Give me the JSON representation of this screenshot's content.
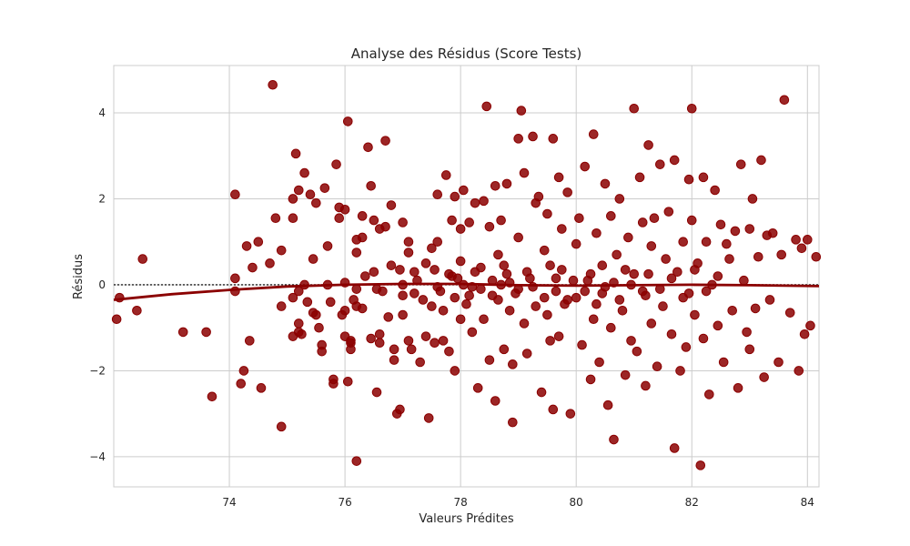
{
  "colors": {
    "point": "#8B0000",
    "trend": "#8B0000",
    "grid": "#cccccc"
  },
  "chart_data": {
    "type": "scatter",
    "title": "Analyse des Résidus (Score Tests)",
    "xlabel": "Valeurs Prédites",
    "ylabel": "Résidus",
    "xlim": [
      72.0,
      84.2
    ],
    "ylim": [
      -4.7,
      5.1
    ],
    "xticks": [
      74,
      76,
      78,
      80,
      82,
      84
    ],
    "yticks": [
      -4,
      -2,
      0,
      2,
      4
    ],
    "ytick_labels": [
      "−4",
      "−2",
      "0",
      "2",
      "4"
    ],
    "grid": true,
    "reference_line": {
      "y": 0,
      "style": "dotted"
    },
    "trend": {
      "x": [
        72.0,
        73.0,
        74.0,
        75.0,
        76.0,
        77.0,
        78.0,
        79.0,
        80.0,
        81.0,
        82.0,
        83.0,
        84.2
      ],
      "y": [
        -0.35,
        -0.22,
        -0.12,
        -0.04,
        0.0,
        0.02,
        0.02,
        -0.01,
        -0.02,
        -0.01,
        0.0,
        -0.01,
        -0.03
      ]
    },
    "points": [
      [
        72.05,
        -0.8
      ],
      [
        72.1,
        -0.3
      ],
      [
        72.4,
        -0.6
      ],
      [
        72.5,
        0.6
      ],
      [
        73.2,
        -1.1
      ],
      [
        73.6,
        -1.1
      ],
      [
        73.7,
        -2.6
      ],
      [
        74.1,
        2.1
      ],
      [
        74.1,
        0.15
      ],
      [
        74.1,
        -0.15
      ],
      [
        74.2,
        -2.3
      ],
      [
        74.25,
        -2.0
      ],
      [
        74.3,
        0.9
      ],
      [
        74.35,
        -1.3
      ],
      [
        74.4,
        0.4
      ],
      [
        74.5,
        1.0
      ],
      [
        74.55,
        -2.4
      ],
      [
        74.7,
        0.5
      ],
      [
        74.75,
        4.65
      ],
      [
        74.8,
        1.55
      ],
      [
        74.9,
        0.8
      ],
      [
        74.9,
        -0.5
      ],
      [
        74.9,
        -3.3
      ],
      [
        75.1,
        2.0
      ],
      [
        75.1,
        1.55
      ],
      [
        75.1,
        -0.3
      ],
      [
        75.1,
        -1.2
      ],
      [
        75.15,
        3.05
      ],
      [
        75.2,
        2.2
      ],
      [
        75.2,
        -0.15
      ],
      [
        75.2,
        -0.9
      ],
      [
        75.2,
        -1.1
      ],
      [
        75.25,
        -1.15
      ],
      [
        75.3,
        2.6
      ],
      [
        75.3,
        0.0
      ],
      [
        75.35,
        -0.4
      ],
      [
        75.4,
        2.1
      ],
      [
        75.45,
        0.6
      ],
      [
        75.45,
        -0.65
      ],
      [
        75.5,
        1.9
      ],
      [
        75.5,
        -0.7
      ],
      [
        75.55,
        -1.0
      ],
      [
        75.6,
        -1.4
      ],
      [
        75.6,
        -1.55
      ],
      [
        75.65,
        2.25
      ],
      [
        75.7,
        0.9
      ],
      [
        75.7,
        0.0
      ],
      [
        75.75,
        -0.4
      ],
      [
        75.8,
        -2.3
      ],
      [
        75.8,
        -2.2
      ],
      [
        75.85,
        2.8
      ],
      [
        75.9,
        1.55
      ],
      [
        75.9,
        1.8
      ],
      [
        75.95,
        -0.7
      ],
      [
        76.0,
        1.75
      ],
      [
        76.0,
        0.05
      ],
      [
        76.0,
        -0.6
      ],
      [
        76.0,
        -1.2
      ],
      [
        76.05,
        3.8
      ],
      [
        76.05,
        -2.25
      ],
      [
        76.1,
        -1.35
      ],
      [
        76.1,
        -1.5
      ],
      [
        76.1,
        -1.3
      ],
      [
        76.2,
        0.75
      ],
      [
        76.2,
        1.05
      ],
      [
        76.2,
        -0.1
      ],
      [
        76.2,
        -0.5
      ],
      [
        76.2,
        -4.1
      ],
      [
        76.3,
        1.6
      ],
      [
        76.3,
        -0.55
      ],
      [
        76.3,
        1.1
      ],
      [
        76.4,
        3.2
      ],
      [
        76.45,
        2.3
      ],
      [
        76.45,
        -1.25
      ],
      [
        76.5,
        1.5
      ],
      [
        76.5,
        0.3
      ],
      [
        76.55,
        -0.1
      ],
      [
        76.55,
        -2.5
      ],
      [
        76.6,
        1.3
      ],
      [
        76.6,
        -1.15
      ],
      [
        76.6,
        -1.35
      ],
      [
        76.7,
        3.35
      ],
      [
        76.7,
        1.35
      ],
      [
        76.75,
        -0.75
      ],
      [
        76.8,
        0.45
      ],
      [
        76.8,
        1.85
      ],
      [
        76.85,
        -1.5
      ],
      [
        76.85,
        -1.75
      ],
      [
        76.9,
        -3.0
      ],
      [
        76.95,
        -2.9
      ],
      [
        77.0,
        1.45
      ],
      [
        77.0,
        0.0
      ],
      [
        77.0,
        -0.25
      ],
      [
        77.0,
        -0.7
      ],
      [
        77.1,
        0.75
      ],
      [
        77.1,
        1.0
      ],
      [
        77.1,
        -1.3
      ],
      [
        77.15,
        -1.5
      ],
      [
        77.2,
        0.3
      ],
      [
        77.2,
        -0.2
      ],
      [
        77.3,
        -1.8
      ],
      [
        77.4,
        0.5
      ],
      [
        77.4,
        -1.2
      ],
      [
        77.45,
        -3.1
      ],
      [
        77.5,
        0.85
      ],
      [
        77.5,
        -0.5
      ],
      [
        77.55,
        -1.35
      ],
      [
        77.6,
        2.1
      ],
      [
        77.6,
        1.0
      ],
      [
        77.6,
        -0.05
      ],
      [
        77.7,
        -0.6
      ],
      [
        77.7,
        -1.3
      ],
      [
        77.75,
        2.55
      ],
      [
        77.8,
        0.25
      ],
      [
        77.8,
        -1.55
      ],
      [
        77.85,
        1.5
      ],
      [
        77.9,
        2.05
      ],
      [
        77.9,
        -0.3
      ],
      [
        77.9,
        -2.0
      ],
      [
        78.0,
        1.3
      ],
      [
        78.0,
        0.55
      ],
      [
        78.0,
        -0.8
      ],
      [
        78.05,
        2.2
      ],
      [
        78.05,
        0.0
      ],
      [
        78.1,
        -0.45
      ],
      [
        78.15,
        1.45
      ],
      [
        78.2,
        -0.05
      ],
      [
        78.2,
        -1.1
      ],
      [
        78.25,
        1.9
      ],
      [
        78.3,
        -2.4
      ],
      [
        78.35,
        0.4
      ],
      [
        78.4,
        1.95
      ],
      [
        78.4,
        -0.8
      ],
      [
        78.45,
        4.15
      ],
      [
        78.5,
        1.35
      ],
      [
        78.5,
        -1.75
      ],
      [
        78.55,
        -0.25
      ],
      [
        78.6,
        2.3
      ],
      [
        78.6,
        -2.7
      ],
      [
        78.65,
        0.7
      ],
      [
        78.7,
        1.5
      ],
      [
        78.7,
        0.0
      ],
      [
        78.75,
        -1.5
      ],
      [
        78.8,
        2.35
      ],
      [
        78.8,
        0.25
      ],
      [
        78.85,
        -0.6
      ],
      [
        78.9,
        -1.85
      ],
      [
        78.9,
        -3.2
      ],
      [
        79.0,
        3.4
      ],
      [
        79.0,
        1.1
      ],
      [
        79.0,
        -0.1
      ],
      [
        79.05,
        4.05
      ],
      [
        79.1,
        2.6
      ],
      [
        79.1,
        -0.9
      ],
      [
        79.15,
        -1.6
      ],
      [
        79.2,
        0.15
      ],
      [
        79.25,
        3.45
      ],
      [
        79.3,
        1.9
      ],
      [
        79.3,
        -0.5
      ],
      [
        79.35,
        2.05
      ],
      [
        79.4,
        -2.5
      ],
      [
        79.45,
        0.8
      ],
      [
        79.5,
        1.65
      ],
      [
        79.5,
        -0.7
      ],
      [
        79.55,
        -1.3
      ],
      [
        79.6,
        3.4
      ],
      [
        79.6,
        -2.9
      ],
      [
        79.65,
        0.15
      ],
      [
        79.7,
        2.5
      ],
      [
        79.7,
        -1.2
      ],
      [
        79.75,
        1.3
      ],
      [
        79.8,
        -0.45
      ],
      [
        79.85,
        2.15
      ],
      [
        79.9,
        -3.0
      ],
      [
        80.0,
        0.95
      ],
      [
        80.0,
        -0.3
      ],
      [
        80.05,
        1.55
      ],
      [
        80.1,
        -1.4
      ],
      [
        80.15,
        2.75
      ],
      [
        80.2,
        0.1
      ],
      [
        80.25,
        -2.2
      ],
      [
        80.3,
        3.5
      ],
      [
        80.3,
        -0.8
      ],
      [
        80.35,
        1.2
      ],
      [
        80.4,
        -1.8
      ],
      [
        80.45,
        0.45
      ],
      [
        80.5,
        2.35
      ],
      [
        80.5,
        -0.05
      ],
      [
        80.55,
        -2.8
      ],
      [
        80.6,
        1.6
      ],
      [
        80.6,
        -1.0
      ],
      [
        80.65,
        -3.6
      ],
      [
        80.7,
        0.7
      ],
      [
        80.75,
        2.0
      ],
      [
        80.8,
        -0.6
      ],
      [
        80.85,
        -2.1
      ],
      [
        80.9,
        1.1
      ],
      [
        80.95,
        -1.3
      ],
      [
        81.0,
        4.1
      ],
      [
        81.0,
        0.25
      ],
      [
        81.05,
        -1.55
      ],
      [
        81.1,
        2.5
      ],
      [
        81.15,
        1.45
      ],
      [
        81.2,
        -0.25
      ],
      [
        81.2,
        -2.35
      ],
      [
        81.25,
        3.25
      ],
      [
        81.3,
        0.9
      ],
      [
        81.3,
        -0.9
      ],
      [
        81.35,
        1.55
      ],
      [
        81.4,
        -1.9
      ],
      [
        81.45,
        2.8
      ],
      [
        81.5,
        -0.5
      ],
      [
        81.55,
        0.6
      ],
      [
        81.6,
        1.7
      ],
      [
        81.65,
        -1.15
      ],
      [
        81.7,
        2.9
      ],
      [
        81.7,
        -3.8
      ],
      [
        81.75,
        0.3
      ],
      [
        81.8,
        -2.0
      ],
      [
        81.85,
        1.0
      ],
      [
        81.9,
        -1.45
      ],
      [
        81.95,
        2.45
      ],
      [
        81.95,
        -0.2
      ],
      [
        82.0,
        4.1
      ],
      [
        82.0,
        1.5
      ],
      [
        82.05,
        -0.7
      ],
      [
        82.1,
        0.5
      ],
      [
        82.15,
        -4.2
      ],
      [
        82.2,
        2.5
      ],
      [
        82.2,
        -1.25
      ],
      [
        82.25,
        1.0
      ],
      [
        82.3,
        -2.55
      ],
      [
        82.35,
        0.0
      ],
      [
        82.4,
        2.2
      ],
      [
        82.45,
        -0.95
      ],
      [
        82.5,
        1.4
      ],
      [
        82.55,
        -1.8
      ],
      [
        82.6,
        0.95
      ],
      [
        82.65,
        0.6
      ],
      [
        82.7,
        -0.6
      ],
      [
        82.75,
        1.25
      ],
      [
        82.8,
        -2.4
      ],
      [
        82.85,
        2.8
      ],
      [
        82.9,
        0.1
      ],
      [
        82.95,
        -1.1
      ],
      [
        83.0,
        1.3
      ],
      [
        83.0,
        -1.5
      ],
      [
        83.05,
        2.0
      ],
      [
        83.1,
        -0.55
      ],
      [
        83.15,
        0.65
      ],
      [
        83.2,
        2.9
      ],
      [
        83.25,
        -2.15
      ],
      [
        83.3,
        1.15
      ],
      [
        83.35,
        -0.35
      ],
      [
        83.4,
        1.2
      ],
      [
        83.5,
        -1.8
      ],
      [
        83.55,
        0.7
      ],
      [
        83.6,
        4.3
      ],
      [
        83.7,
        -0.65
      ],
      [
        83.8,
        1.05
      ],
      [
        83.85,
        -2.0
      ],
      [
        83.9,
        0.85
      ],
      [
        83.95,
        -1.15
      ],
      [
        84.0,
        1.05
      ],
      [
        84.05,
        -0.95
      ],
      [
        84.15,
        0.65
      ],
      [
        76.15,
        -0.35
      ],
      [
        76.35,
        0.2
      ],
      [
        76.65,
        -0.15
      ],
      [
        76.95,
        0.35
      ],
      [
        77.25,
        0.1
      ],
      [
        77.35,
        -0.35
      ],
      [
        77.55,
        0.35
      ],
      [
        77.65,
        -0.15
      ],
      [
        77.85,
        0.2
      ],
      [
        77.95,
        0.15
      ],
      [
        78.15,
        -0.25
      ],
      [
        78.25,
        0.3
      ],
      [
        78.35,
        -0.1
      ],
      [
        78.55,
        0.1
      ],
      [
        78.65,
        -0.35
      ],
      [
        78.75,
        0.45
      ],
      [
        78.85,
        0.05
      ],
      [
        78.95,
        -0.2
      ],
      [
        79.15,
        0.3
      ],
      [
        79.25,
        -0.05
      ],
      [
        79.45,
        -0.3
      ],
      [
        79.55,
        0.45
      ],
      [
        79.65,
        -0.15
      ],
      [
        79.75,
        0.35
      ],
      [
        79.85,
        -0.35
      ],
      [
        79.95,
        0.1
      ],
      [
        80.15,
        -0.15
      ],
      [
        80.25,
        0.25
      ],
      [
        80.35,
        -0.45
      ],
      [
        80.45,
        -0.2
      ],
      [
        80.65,
        0.05
      ],
      [
        80.75,
        -0.35
      ],
      [
        80.85,
        0.35
      ],
      [
        80.95,
        0.0
      ],
      [
        81.15,
        -0.15
      ],
      [
        81.25,
        0.25
      ],
      [
        81.45,
        -0.1
      ],
      [
        81.65,
        0.15
      ],
      [
        81.85,
        -0.3
      ],
      [
        82.05,
        0.35
      ],
      [
        82.25,
        -0.15
      ],
      [
        82.45,
        0.2
      ]
    ]
  }
}
